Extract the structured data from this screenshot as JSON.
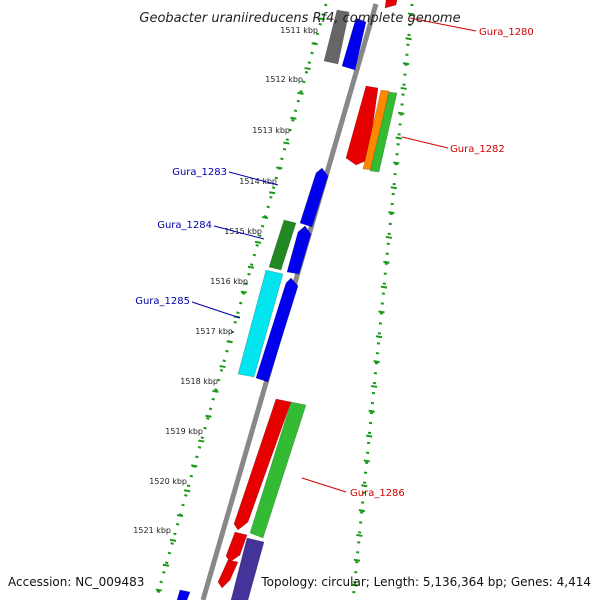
{
  "title": "Geobacter uraniireducens Rf4, complete genome",
  "footer": {
    "accession": "Accession: NC_009483",
    "topology": "Topology: circular; Length: 5,136,364 bp; Genes: 4,414"
  },
  "ticks": [
    {
      "label": "1511 kbp"
    },
    {
      "label": "1512 kbp"
    },
    {
      "label": "1513 kbp"
    },
    {
      "label": "1514 kbp"
    },
    {
      "label": "1515 kbp"
    },
    {
      "label": "1516 kbp"
    },
    {
      "label": "1517 kbp"
    },
    {
      "label": "1518 kbp"
    },
    {
      "label": "1519 kbp"
    },
    {
      "label": "1520 kbp"
    },
    {
      "label": "1521 kbp"
    }
  ],
  "gene_labels": [
    {
      "name": "Gura_1280",
      "color": "#d40000"
    },
    {
      "name": "Gura_1282",
      "color": "#d40000"
    },
    {
      "name": "Gura_1283",
      "color": "#0000aa"
    },
    {
      "name": "Gura_1284",
      "color": "#0000aa"
    },
    {
      "name": "Gura_1285",
      "color": "#0000aa"
    },
    {
      "name": "Gura_1286",
      "color": "#d40000"
    }
  ],
  "colors": {
    "backbone": "#888888",
    "dots": "#1a9a1a",
    "gene_red": "#e60000",
    "gene_blue": "#0000ee",
    "gene_green": "#33bb33",
    "gene_dkgreen": "#228822",
    "gene_orange": "#ff8800",
    "gene_cyan": "#00e5ee",
    "gene_gray": "#666666",
    "gene_purple": "#443399"
  }
}
